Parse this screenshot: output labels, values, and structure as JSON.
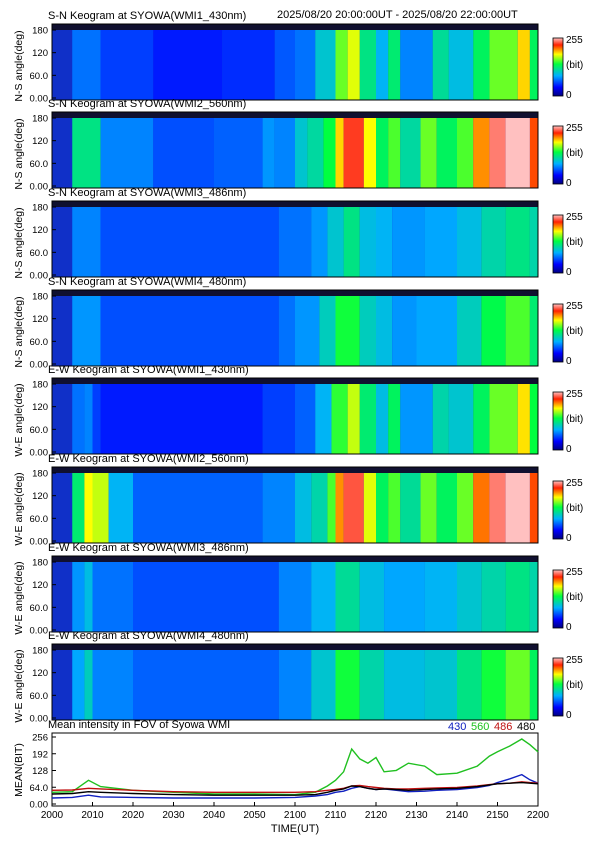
{
  "header": {
    "date_range": "2025/08/20 20:00:00UT - 2025/08/20 22:00:00UT"
  },
  "panels": [
    {
      "title": "S-N Keogram at SYOWA(WMI1_430nm)",
      "ylabel": "N-S angle(deg)"
    },
    {
      "title": "S-N Keogram at SYOWA(WMI2_560nm)",
      "ylabel": "N-S angle(deg)"
    },
    {
      "title": "S-N Keogram at SYOWA(WMI3_486nm)",
      "ylabel": "N-S angle(deg)"
    },
    {
      "title": "S-N Keogram at SYOWA(WMI4_480nm)",
      "ylabel": "N-S angle(deg)"
    },
    {
      "title": "E-W Keogram at SYOWA(WMI1_430nm)",
      "ylabel": "W-E angle(deg)"
    },
    {
      "title": "E-W Keogram at SYOWA(WMI2_560nm)",
      "ylabel": "W-E angle(deg)"
    },
    {
      "title": "E-W Keogram at SYOWA(WMI3_486nm)",
      "ylabel": "W-E angle(deg)"
    },
    {
      "title": "E-W Keogram at SYOWA(WMI4_480nm)",
      "ylabel": "W-E angle(deg)"
    }
  ],
  "keogram_yticks": [
    "180",
    "120",
    "60.0",
    "0.00"
  ],
  "colorbar": {
    "max_label": "255",
    "unit_label": "(bit)",
    "min_label": "0"
  },
  "colors": {
    "ch430": "#1020c0",
    "ch560": "#20c020",
    "ch486": "#c01010",
    "ch480": "#000000"
  },
  "chart_data": {
    "type": "line",
    "title": "Mean intensity in FOV of Syowa WMI",
    "xlabel": "TIME(UT)",
    "ylabel": "MEAN(BIT)",
    "xticks": [
      "2000",
      "2010",
      "2020",
      "2030",
      "2040",
      "2050",
      "2100",
      "2110",
      "2120",
      "2130",
      "2140",
      "2150",
      "2200"
    ],
    "yticks": [
      "256",
      "192",
      "128",
      "64.0",
      "0.00"
    ],
    "xlim": [
      0,
      120
    ],
    "ylim": [
      0,
      256
    ],
    "x_minutes": [
      0,
      5,
      9,
      12,
      20,
      30,
      40,
      50,
      60,
      65,
      68,
      70,
      72,
      74,
      76,
      78,
      80,
      82,
      85,
      88,
      92,
      95,
      100,
      105,
      108,
      110,
      113,
      116,
      118,
      120
    ],
    "series": [
      {
        "name": "430",
        "color": "#1020c0",
        "values": [
          28,
          30,
          38,
          32,
          30,
          28,
          28,
          28,
          30,
          35,
          40,
          48,
          52,
          62,
          68,
          62,
          58,
          60,
          55,
          50,
          52,
          55,
          58,
          65,
          72,
          82,
          95,
          110,
          92,
          80
        ]
      },
      {
        "name": "560",
        "color": "#20c020",
        "values": [
          48,
          50,
          90,
          68,
          55,
          48,
          42,
          42,
          40,
          48,
          70,
          90,
          120,
          200,
          165,
          150,
          170,
          120,
          125,
          150,
          140,
          110,
          115,
          140,
          175,
          190,
          210,
          235,
          215,
          190
        ]
      },
      {
        "name": "486",
        "color": "#c01010",
        "values": [
          55,
          56,
          62,
          60,
          55,
          50,
          48,
          48,
          48,
          50,
          55,
          58,
          62,
          70,
          72,
          68,
          65,
          62,
          60,
          60,
          62,
          63,
          65,
          70,
          75,
          78,
          80,
          85,
          82,
          80
        ]
      },
      {
        "name": "480",
        "color": "#000000",
        "values": [
          42,
          44,
          50,
          48,
          44,
          40,
          38,
          38,
          38,
          40,
          48,
          55,
          60,
          70,
          68,
          62,
          58,
          60,
          58,
          55,
          58,
          60,
          62,
          68,
          74,
          78,
          80,
          82,
          80,
          78
        ]
      }
    ]
  }
}
